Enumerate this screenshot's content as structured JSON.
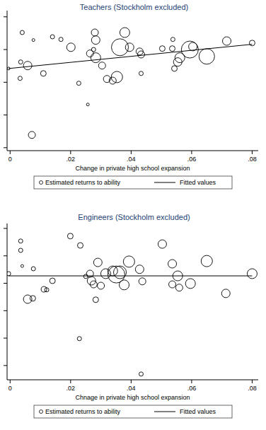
{
  "chart_data": [
    {
      "type": "scatter",
      "title": "Teachers (Stockholm excluded)",
      "x_label": "Change in private high school expansion",
      "xlim": [
        -0.001,
        0.082
      ],
      "ylim": [
        -0.09,
        4.19
      ],
      "xticks": [
        0,
        {
          "value": 0.02,
          "label": ".02"
        },
        {
          "value": 0.04,
          "label": ".04"
        },
        {
          "value": 0.06,
          "label": ".06"
        },
        {
          "value": 0.08,
          "label": ".08"
        }
      ],
      "yticks": [
        0,
        1,
        2,
        3,
        4
      ],
      "tick_labels": "x",
      "grid": false,
      "legend": "bottom",
      "series": [
        {
          "name": "Estimated returns to ability",
          "type": "scatter",
          "marker": "circle",
          "color": "#000000",
          "x": [
            -0.0005,
            0.004,
            0.0077,
            0.0035,
            0.0033,
            0.0058,
            0.014,
            0.0168,
            0.011,
            0.0072,
            0.0201,
            0.0227,
            0.0257,
            0.0264,
            0.0276,
            0.028,
            0.0283,
            0.0283,
            0.0304,
            0.032,
            0.0339,
            0.0353,
            0.0363,
            0.0379,
            0.0395,
            0.0428,
            0.0433,
            0.0433,
            0.0503,
            0.0538,
            0.0536,
            0.0543,
            0.0554,
            0.0561,
            0.0594,
            0.0604,
            0.065,
            0.0716,
            0.08
          ],
          "values": [
            2.42,
            3.52,
            3.29,
            2.62,
            2.12,
            2.51,
            3.39,
            3.31,
            2.27,
            0.39,
            3.07,
            1.97,
            1.32,
            2.88,
            3.0,
            3.52,
            3.29,
            2.75,
            2.51,
            2.1,
            2.05,
            2.16,
            3.07,
            3.52,
            3.07,
            2.94,
            2.27,
            2.85,
            3.03,
            3.31,
            3.03,
            2.42,
            2.62,
            2.75,
            3.0,
            3.09,
            2.79,
            3.26,
            3.2
          ],
          "size": [
            4,
            9,
            4,
            9,
            9,
            36,
            9,
            9,
            16,
            25,
            36,
            9,
            4,
            25,
            9,
            25,
            36,
            49,
            25,
            25,
            25,
            64,
            144,
            49,
            36,
            25,
            9,
            25,
            16,
            9,
            16,
            16,
            36,
            49,
            144,
            36,
            121,
            36,
            16
          ]
        },
        {
          "name": "Fitted values",
          "type": "line",
          "line_style": "solid",
          "color": "#000000",
          "x": [
            -0.0005,
            0.08
          ],
          "values": [
            2.42,
            3.16
          ]
        }
      ]
    },
    {
      "type": "scatter",
      "title": "Engineers (Stockholm excluded)",
      "x_label": "Chnage in private high school expansion",
      "xlim": [
        -0.001,
        0.082
      ],
      "ylim": [
        -0.52,
        5.18
      ],
      "xticks": [
        0,
        {
          "value": 0.02,
          "label": ".02"
        },
        {
          "value": 0.04,
          "label": ".04"
        },
        {
          "value": 0.06,
          "label": ".06"
        },
        {
          "value": 0.08,
          "label": ".08"
        }
      ],
      "yticks": [
        0,
        1,
        2,
        3,
        4,
        5
      ],
      "tick_labels": "x",
      "grid": false,
      "legend": "bottom",
      "series": [
        {
          "name": "Estimated returns to ability",
          "type": "scatter",
          "marker": "circle",
          "color": "#000000",
          "x": [
            -0.0005,
            0.0035,
            0.0035,
            0.004,
            0.0077,
            0.0058,
            0.0075,
            0.0112,
            0.0121,
            0.014,
            0.0199,
            0.0232,
            0.0229,
            0.025,
            0.0264,
            0.0276,
            0.0283,
            0.029,
            0.0269,
            0.03,
            0.0316,
            0.0339,
            0.0351,
            0.0363,
            0.0377,
            0.0393,
            0.0428,
            0.0433,
            0.0437,
            0.0503,
            0.0536,
            0.0536,
            0.0554,
            0.0559,
            0.0596,
            0.065,
            0.0713,
            0.08
          ],
          "values": [
            3.35,
            4.54,
            4.2,
            3.63,
            3.53,
            2.42,
            2.45,
            2.78,
            2.76,
            3.09,
            4.72,
            4.38,
            0.98,
            3.25,
            3.35,
            2.96,
            2.4,
            3.76,
            3.09,
            2.91,
            3.35,
            3.45,
            3.32,
            3.4,
            2.94,
            3.79,
            3.51,
            -0.31,
            3.07,
            4.43,
            3.71,
            2.96,
            3.27,
            2.84,
            2.99,
            3.81,
            2.63,
            3.35
          ],
          "size": [
            9,
            9,
            9,
            4,
            9,
            36,
            16,
            16,
            9,
            16,
            16,
            16,
            9,
            9,
            25,
            25,
            16,
            36,
            36,
            25,
            49,
            49,
            144,
            81,
            49,
            64,
            36,
            9,
            25,
            36,
            36,
            25,
            49,
            25,
            49,
            64,
            36,
            49
          ]
        },
        {
          "name": "Fitted values",
          "type": "line",
          "line_style": "solid",
          "color": "#000000",
          "x": [
            -0.0005,
            0.08
          ],
          "values": [
            3.27,
            3.27
          ]
        }
      ]
    }
  ]
}
